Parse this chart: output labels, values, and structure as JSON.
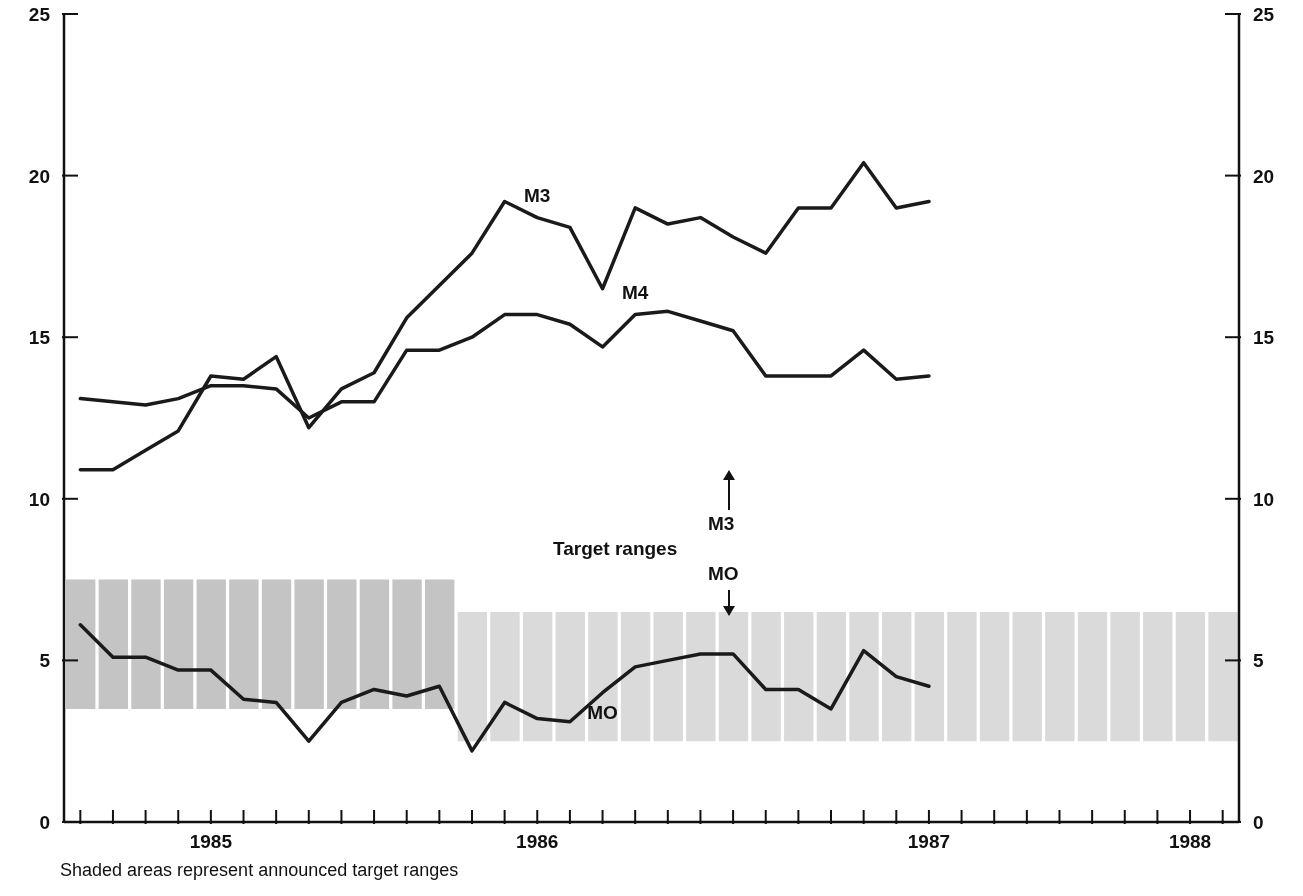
{
  "chart_data": {
    "type": "line",
    "annotations": [
      "Target ranges",
      "M3",
      "MO",
      "Shaded areas represent announced target ranges"
    ],
    "categories": [
      null,
      null,
      null,
      null,
      "1985",
      null,
      null,
      null,
      null,
      null,
      null,
      null,
      null,
      null,
      "1986",
      null,
      null,
      null,
      null,
      null,
      null,
      null,
      null,
      null,
      null,
      null,
      "1987",
      null,
      null,
      null,
      null,
      null,
      null,
      null,
      "1988",
      null
    ],
    "ylim": [
      0,
      25
    ],
    "yticks": [
      0,
      5,
      10,
      15,
      20,
      25
    ],
    "y2lim": [
      0,
      25
    ],
    "y2ticks": [
      0,
      5,
      10,
      15,
      20,
      25
    ],
    "series": [
      {
        "type": "bar",
        "color": "#c4c4c4",
        "values": [
          4,
          4,
          4,
          4,
          4,
          4,
          4,
          4,
          4,
          4,
          4,
          4,
          null,
          null,
          null,
          null,
          null,
          null,
          null,
          null,
          null,
          null,
          null,
          null,
          null,
          null,
          null,
          null,
          null,
          null,
          null,
          null,
          null,
          null,
          null,
          null
        ],
        "base": [
          3.5,
          3.5,
          3.5,
          3.5,
          3.5,
          3.5,
          3.5,
          3.5,
          3.5,
          3.5,
          3.5,
          3.5,
          null,
          null,
          null,
          null,
          null,
          null,
          null,
          null,
          null,
          null,
          null,
          null,
          null,
          null,
          null,
          null,
          null,
          null,
          null,
          null,
          null,
          null,
          null,
          null
        ]
      },
      {
        "type": "bar",
        "color": "#dadada",
        "values": [
          null,
          null,
          null,
          null,
          null,
          null,
          null,
          null,
          null,
          null,
          null,
          null,
          4,
          4,
          4,
          4,
          4,
          4,
          4,
          4,
          4,
          4,
          4,
          4,
          4,
          4,
          4,
          4,
          4,
          4,
          4,
          4,
          4,
          4,
          4,
          4
        ],
        "base": [
          null,
          null,
          null,
          null,
          null,
          null,
          null,
          null,
          null,
          null,
          null,
          null,
          2.5,
          2.5,
          2.5,
          2.5,
          2.5,
          2.5,
          2.5,
          2.5,
          2.5,
          2.5,
          2.5,
          2.5,
          2.5,
          2.5,
          2.5,
          2.5,
          2.5,
          2.5,
          2.5,
          2.5,
          2.5,
          2.5,
          2.5,
          2.5
        ]
      },
      {
        "name": "M3",
        "color": "#1a1a1a",
        "values": [
          10.9,
          10.9,
          11.5,
          12.1,
          13.8,
          13.7,
          14.4,
          12.2,
          13.4,
          13.9,
          15.6,
          16.6,
          17.6,
          19.2,
          18.7,
          18.4,
          16.5,
          19.0,
          18.5,
          18.7,
          18.1,
          17.6,
          19.0,
          19.0,
          20.4,
          19.0,
          19.2,
          null,
          null,
          null,
          null,
          null,
          null,
          null,
          null,
          null
        ]
      },
      {
        "name": "M4",
        "color": "#1a1a1a",
        "values": [
          13.1,
          13.0,
          12.9,
          13.1,
          13.5,
          13.5,
          13.4,
          12.5,
          13.0,
          13.0,
          14.6,
          14.6,
          15.0,
          15.7,
          15.7,
          15.4,
          14.7,
          15.7,
          15.8,
          15.5,
          15.2,
          13.8,
          13.8,
          13.8,
          14.6,
          13.7,
          13.8,
          null,
          null,
          null,
          null,
          null,
          null,
          null,
          null,
          null
        ]
      },
      {
        "name": "MO",
        "color": "#1a1a1a",
        "values": [
          6.1,
          5.1,
          5.1,
          4.7,
          4.7,
          3.8,
          3.7,
          2.5,
          3.7,
          4.1,
          3.9,
          4.2,
          2.2,
          3.7,
          3.2,
          3.1,
          4.0,
          4.8,
          5.0,
          5.2,
          5.2,
          4.1,
          4.1,
          3.5,
          5.3,
          4.5,
          4.2,
          null,
          null,
          null,
          null,
          null,
          null,
          null,
          null,
          null
        ]
      }
    ]
  }
}
